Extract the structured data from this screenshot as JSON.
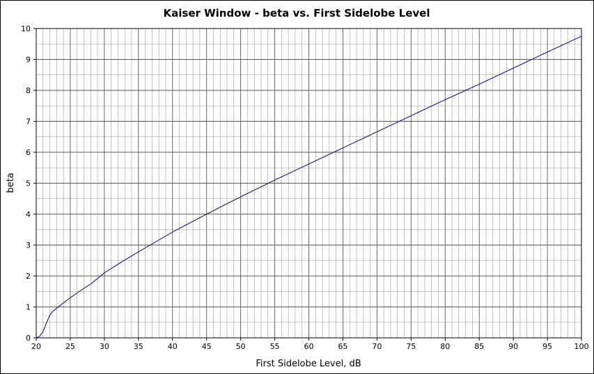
{
  "chart_data": {
    "type": "line",
    "title": "Kaiser Window  -  beta vs. First Sidelobe Level",
    "xlabel": "First Sidelobe Level, dB",
    "ylabel": "beta",
    "xlim": [
      20,
      100
    ],
    "ylim": [
      0,
      10
    ],
    "x_ticks": [
      20,
      25,
      30,
      35,
      40,
      45,
      50,
      55,
      60,
      65,
      70,
      75,
      80,
      85,
      90,
      95,
      100
    ],
    "y_ticks": [
      0,
      1,
      2,
      3,
      4,
      5,
      6,
      7,
      8,
      9,
      10
    ],
    "x_minor_step": 1,
    "y_minor_step": 0.5,
    "grid": true,
    "legend": "none",
    "colors": {
      "line": "#1a1a6e",
      "major_grid": "#555555",
      "minor_grid": "#999999"
    },
    "series": [
      {
        "x": [
          20,
          20.5,
          21,
          21.5,
          22,
          22.5,
          23,
          24,
          25,
          26,
          27,
          28,
          30,
          32.5,
          35,
          37.5,
          40,
          42.5,
          45,
          47.5,
          50,
          55,
          60,
          65,
          70,
          75,
          80,
          85,
          90,
          95,
          100
        ],
        "y": [
          0,
          0.05,
          0.2,
          0.48,
          0.74,
          0.87,
          0.96,
          1.13,
          1.3,
          1.45,
          1.6,
          1.74,
          2.1,
          2.45,
          2.78,
          3.1,
          3.42,
          3.71,
          4.0,
          4.28,
          4.56,
          5.1,
          5.62,
          6.14,
          6.66,
          7.18,
          7.7,
          8.2,
          8.72,
          9.24,
          9.75
        ]
      }
    ]
  }
}
